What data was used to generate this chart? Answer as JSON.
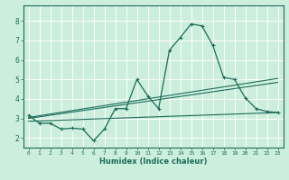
{
  "xlabel": "Humidex (Indice chaleur)",
  "ylabel": "",
  "bg_color": "#cceedd",
  "grid_color": "#ffffff",
  "line_color": "#1a6b5a",
  "xlim": [
    -0.5,
    23.5
  ],
  "ylim": [
    1.5,
    8.8
  ],
  "xticks": [
    0,
    1,
    2,
    3,
    4,
    5,
    6,
    7,
    8,
    9,
    10,
    11,
    12,
    13,
    14,
    15,
    16,
    17,
    18,
    19,
    20,
    21,
    22,
    23
  ],
  "yticks": [
    2,
    3,
    4,
    5,
    6,
    7,
    8
  ],
  "curve_x": [
    0,
    1,
    2,
    3,
    4,
    5,
    6,
    7,
    8,
    9,
    10,
    11,
    12,
    13,
    14,
    15,
    16,
    17,
    18,
    19,
    20,
    21,
    22,
    23
  ],
  "curve_y": [
    3.15,
    2.75,
    2.75,
    2.45,
    2.5,
    2.45,
    1.85,
    2.45,
    3.5,
    3.5,
    5.0,
    4.15,
    3.5,
    6.5,
    7.15,
    7.85,
    7.75,
    6.75,
    5.1,
    5.0,
    4.05,
    3.5,
    3.35,
    3.3
  ],
  "line1_x": [
    0,
    23
  ],
  "line1_y": [
    3.0,
    4.85
  ],
  "line2_x": [
    0,
    23
  ],
  "line2_y": [
    3.05,
    5.05
  ],
  "line3_x": [
    0,
    23
  ],
  "line3_y": [
    2.85,
    3.3
  ]
}
